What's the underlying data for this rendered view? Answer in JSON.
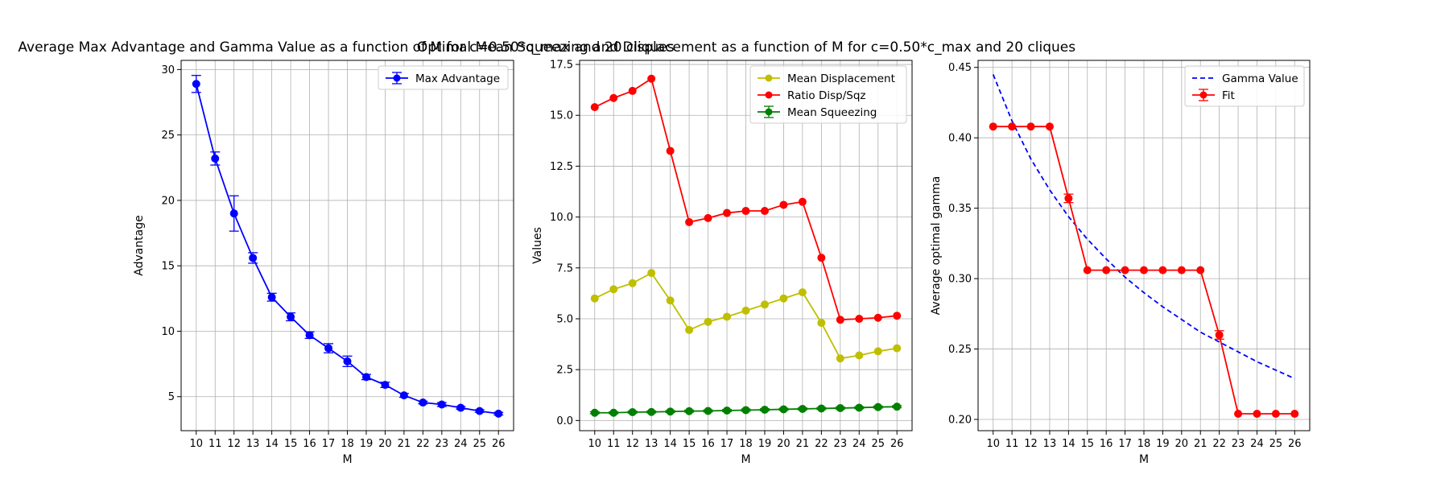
{
  "chart_data": [
    {
      "type": "line",
      "title": "Average Max Advantage and Gamma Value as a function of M for c=0.50*c_max and 20 cliques",
      "xlabel": "M",
      "ylabel": "Advantage",
      "x": [
        10,
        11,
        12,
        13,
        14,
        15,
        16,
        17,
        18,
        19,
        20,
        21,
        22,
        23,
        24,
        25,
        26
      ],
      "xlim": [
        9.2,
        26.8
      ],
      "ylim": [
        2.4,
        30.7
      ],
      "yticks": [
        5,
        10,
        15,
        20,
        25,
        30
      ],
      "grid": true,
      "legend_position": "upper-right",
      "series": [
        {
          "name": "Max Advantage",
          "color": "#0000ff",
          "marker": "circle",
          "errorbar": true,
          "values": [
            28.9,
            23.2,
            19.0,
            15.6,
            12.6,
            11.1,
            9.7,
            8.7,
            7.7,
            6.5,
            5.9,
            5.1,
            4.55,
            4.4,
            4.15,
            3.9,
            3.7
          ],
          "errors": [
            0.65,
            0.5,
            1.35,
            0.4,
            0.3,
            0.3,
            0.25,
            0.35,
            0.4,
            0.2,
            0.2,
            0.15,
            0.1,
            0.15,
            0.1,
            0.1,
            0.1
          ]
        }
      ]
    },
    {
      "type": "line",
      "title": "Optimal Mean Squeezing and Displacement as a function of M for c=0.50*c_max and 20 cliques",
      "xlabel": "M",
      "ylabel": "Values",
      "x": [
        10,
        11,
        12,
        13,
        14,
        15,
        16,
        17,
        18,
        19,
        20,
        21,
        22,
        23,
        24,
        25,
        26
      ],
      "xlim": [
        9.2,
        26.8
      ],
      "ylim": [
        -0.5,
        17.7
      ],
      "yticks": [
        0.0,
        2.5,
        5.0,
        7.5,
        10.0,
        12.5,
        15.0,
        17.5
      ],
      "ytick_labels": [
        "0.0",
        "2.5",
        "5.0",
        "7.5",
        "10.0",
        "12.5",
        "15.0",
        "17.5"
      ],
      "grid": true,
      "legend_position": "upper-right",
      "series": [
        {
          "name": "Mean Displacement",
          "color": "#bfbf00",
          "marker": "circle",
          "errorbar": false,
          "values": [
            6.0,
            6.45,
            6.75,
            7.25,
            5.9,
            4.45,
            4.85,
            5.1,
            5.4,
            5.7,
            6.0,
            6.3,
            4.8,
            3.05,
            3.2,
            3.4,
            3.55
          ]
        },
        {
          "name": "Ratio Disp/Sqz",
          "color": "#ff0000",
          "marker": "circle",
          "errorbar": false,
          "values": [
            15.4,
            15.85,
            16.2,
            16.8,
            13.25,
            9.75,
            9.95,
            10.2,
            10.3,
            10.3,
            10.6,
            10.75,
            8.0,
            4.95,
            5.0,
            5.05,
            5.15
          ]
        },
        {
          "name": "Mean Squeezing",
          "color": "#008000",
          "marker": "circle",
          "errorbar": true,
          "values": [
            0.38,
            0.38,
            0.41,
            0.42,
            0.44,
            0.46,
            0.47,
            0.49,
            0.51,
            0.53,
            0.55,
            0.57,
            0.59,
            0.61,
            0.63,
            0.66,
            0.68
          ],
          "errors": [
            0.05,
            0.05,
            0.05,
            0.05,
            0.05,
            0.05,
            0.05,
            0.05,
            0.05,
            0.05,
            0.05,
            0.05,
            0.05,
            0.05,
            0.05,
            0.05,
            0.05
          ]
        }
      ]
    },
    {
      "type": "line",
      "title": "",
      "xlabel": "M",
      "ylabel": "Average optimal gamma",
      "x": [
        10,
        11,
        12,
        13,
        14,
        15,
        16,
        17,
        18,
        19,
        20,
        21,
        22,
        23,
        24,
        25,
        26
      ],
      "xlim": [
        9.2,
        26.8
      ],
      "ylim": [
        0.192,
        0.455
      ],
      "yticks": [
        0.2,
        0.25,
        0.3,
        0.35,
        0.4,
        0.45
      ],
      "ytick_labels": [
        "0.20",
        "0.25",
        "0.30",
        "0.35",
        "0.40",
        "0.45"
      ],
      "grid": true,
      "legend_position": "upper-right",
      "series": [
        {
          "name": "Gamma Value",
          "color": "#0000ff",
          "marker": "none",
          "dashed": true,
          "errorbar": false,
          "values": [
            0.445,
            0.412,
            0.385,
            0.363,
            0.344,
            0.328,
            0.314,
            0.301,
            0.29,
            0.28,
            0.271,
            0.262,
            0.255,
            0.248,
            0.241,
            0.235,
            0.229
          ]
        },
        {
          "name": "Fit",
          "color": "#ff0000",
          "marker": "circle",
          "errorbar": true,
          "values": [
            0.408,
            0.408,
            0.408,
            0.408,
            0.357,
            0.306,
            0.306,
            0.306,
            0.306,
            0.306,
            0.306,
            0.306,
            0.26,
            0.204,
            0.204,
            0.204,
            0.204
          ],
          "errors": [
            0.0,
            0.0,
            0.0,
            0.0,
            0.003,
            0.0,
            0.0,
            0.0,
            0.0,
            0.0,
            0.0,
            0.0,
            0.003,
            0.0,
            0.0,
            0.0,
            0.0
          ]
        }
      ]
    }
  ]
}
